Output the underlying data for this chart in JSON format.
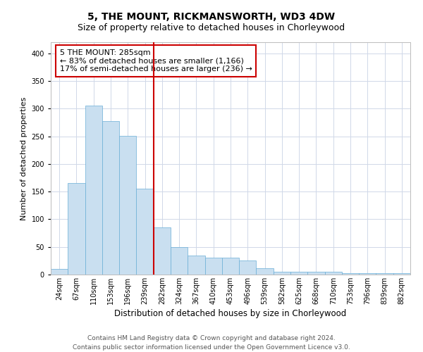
{
  "title1": "5, THE MOUNT, RICKMANSWORTH, WD3 4DW",
  "title2": "Size of property relative to detached houses in Chorleywood",
  "xlabel": "Distribution of detached houses by size in Chorleywood",
  "ylabel": "Number of detached properties",
  "categories": [
    "24sqm",
    "67sqm",
    "110sqm",
    "153sqm",
    "196sqm",
    "239sqm",
    "282sqm",
    "324sqm",
    "367sqm",
    "410sqm",
    "453sqm",
    "496sqm",
    "539sqm",
    "582sqm",
    "625sqm",
    "668sqm",
    "710sqm",
    "753sqm",
    "796sqm",
    "839sqm",
    "882sqm"
  ],
  "values": [
    10,
    165,
    305,
    278,
    251,
    155,
    85,
    50,
    35,
    30,
    30,
    25,
    11,
    5,
    5,
    5,
    5,
    3,
    3,
    3,
    3
  ],
  "bar_color": "#c9dff0",
  "bar_edge_color": "#6aaed6",
  "vline_index": 6,
  "vline_color": "#cc0000",
  "annotation_text": "5 THE MOUNT: 285sqm\n← 83% of detached houses are smaller (1,166)\n17% of semi-detached houses are larger (236) →",
  "annotation_box_color": "white",
  "annotation_box_edge": "#cc0000",
  "ylim": [
    0,
    420
  ],
  "yticks": [
    0,
    50,
    100,
    150,
    200,
    250,
    300,
    350,
    400
  ],
  "grid_color": "#d0d8e8",
  "footer1": "Contains HM Land Registry data © Crown copyright and database right 2024.",
  "footer2": "Contains public sector information licensed under the Open Government Licence v3.0.",
  "title1_fontsize": 10,
  "title2_fontsize": 9,
  "xlabel_fontsize": 8.5,
  "ylabel_fontsize": 8,
  "tick_fontsize": 7,
  "annotation_fontsize": 8,
  "footer_fontsize": 6.5
}
